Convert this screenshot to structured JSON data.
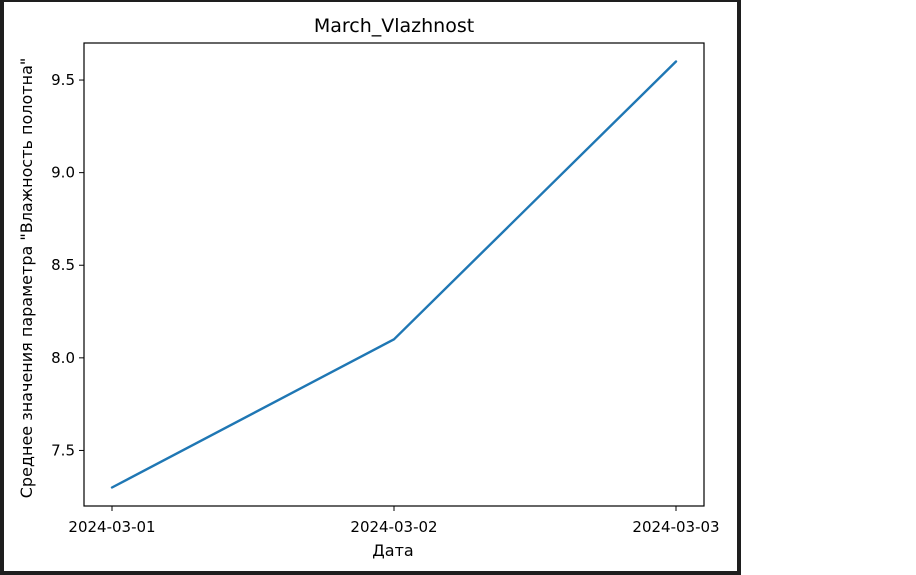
{
  "chart_data": {
    "type": "line",
    "title": "March_Vlazhnost",
    "xlabel": "Дата",
    "ylabel": "Среднее значения параметра \"Влажность полотна\"",
    "x": [
      "2024-03-01",
      "2024-03-02",
      "2024-03-03"
    ],
    "series": [
      {
        "values": [
          7.3,
          8.1,
          9.6
        ],
        "color": "#1f77b4"
      }
    ],
    "ylim": [
      7.2,
      9.7
    ],
    "yticks": [
      "7.5",
      "8.0",
      "8.5",
      "9.0",
      "9.5"
    ],
    "grid": false
  }
}
